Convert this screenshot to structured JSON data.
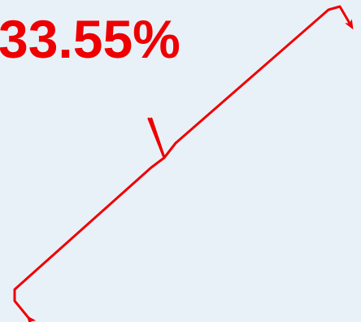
{
  "annotation": {
    "value_text": "33.55%"
  },
  "colors": {
    "background": "#e8f1f8",
    "accent": "#ee0000"
  },
  "icons": {
    "brace": "curly-brace-icon",
    "arrow_top": "arrow-head-icon",
    "arrow_bottom": "arrow-head-icon"
  }
}
